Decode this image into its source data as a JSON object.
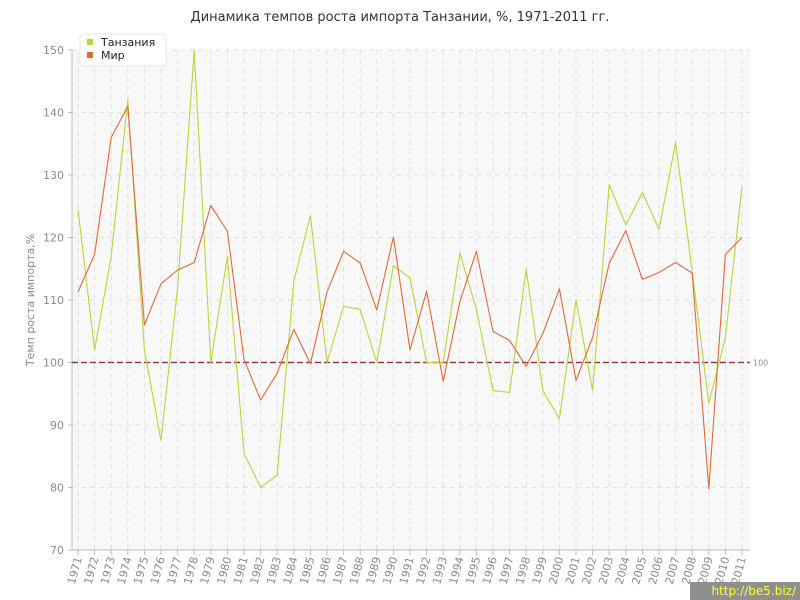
{
  "chart_data": {
    "type": "line",
    "title": "Динамика темпов роста импорта Танзании, %, 1971-2011 гг.",
    "ylabel": "Темп роста импорта,%",
    "xlabel": "",
    "ylim": [
      70,
      150
    ],
    "yticks": [
      70,
      80,
      90,
      100,
      110,
      120,
      130,
      140,
      150
    ],
    "x": [
      "1971",
      "1972",
      "1973",
      "1974",
      "1975",
      "1976",
      "1977",
      "1978",
      "1979",
      "1980",
      "1981",
      "1982",
      "1983",
      "1984",
      "1985",
      "1986",
      "1987",
      "1988",
      "1989",
      "1990",
      "1991",
      "1992",
      "1993",
      "1994",
      "1995",
      "1996",
      "1997",
      "1998",
      "1999",
      "2000",
      "2001",
      "2002",
      "2003",
      "2004",
      "2005",
      "2006",
      "2007",
      "2008",
      "2009",
      "2010",
      "2011"
    ],
    "grid": true,
    "legend": "top-left",
    "reference_line": {
      "value": 100,
      "label": "100",
      "color": "#9a3b3b"
    },
    "series": [
      {
        "name": "Танзания",
        "color": "#b8d63a",
        "values": [
          124.5,
          102,
          117,
          142,
          102,
          87.5,
          112,
          150,
          100,
          117,
          85.5,
          80,
          82,
          113,
          123.5,
          100,
          109,
          108.5,
          100,
          115.5,
          113.5,
          100,
          100,
          117.5,
          108.5,
          95.5,
          95.2,
          115,
          95.5,
          91,
          110,
          95.5,
          128.5,
          122,
          127.2,
          121.3,
          135.2,
          114.5,
          93.5,
          104,
          128.2
        ]
      },
      {
        "name": "Мир",
        "color": "#e06a38",
        "values": [
          111.3,
          117.3,
          136,
          141,
          106,
          112.6,
          114.8,
          116,
          125.1,
          121,
          100.5,
          94,
          98.3,
          105.3,
          99.8,
          111.3,
          117.8,
          115.9,
          108.4,
          120.1,
          102,
          111.4,
          97,
          109.7,
          117.8,
          105,
          103.5,
          99.4,
          104.6,
          111.8,
          97.1,
          104,
          115.9,
          121.1,
          113.3,
          114.4,
          116,
          114.3,
          79.8,
          117.3,
          120
        ]
      }
    ]
  },
  "watermark": "http://be5.biz/"
}
